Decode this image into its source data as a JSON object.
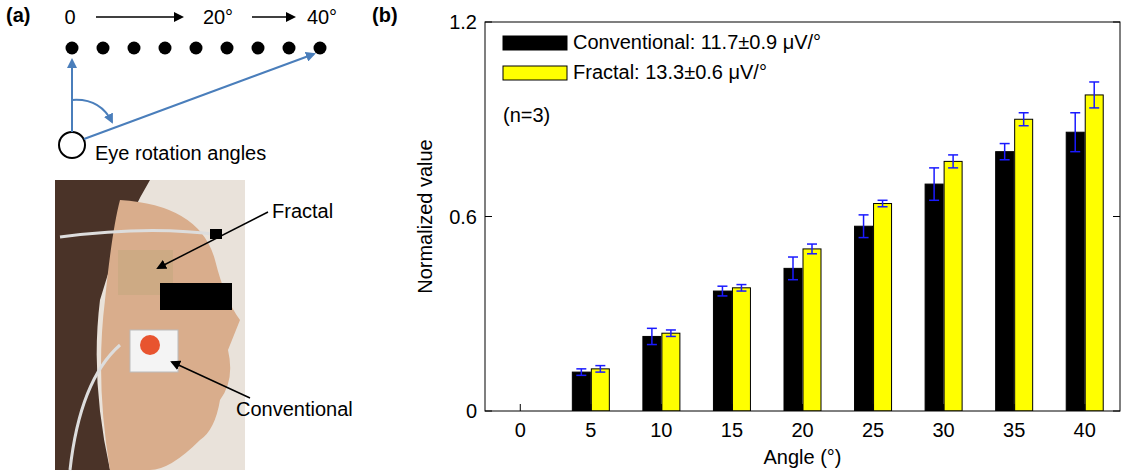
{
  "chart_data": {
    "type": "bar",
    "x_label": "Angle (°)",
    "y_label": "Normalized value",
    "categories": [
      "0",
      "5",
      "10",
      "15",
      "20",
      "25",
      "30",
      "35",
      "40"
    ],
    "series": [
      {
        "name": "Conventional: 11.7±0.9 μV/°",
        "color": "#000000",
        "values": [
          0,
          0.12,
          0.23,
          0.37,
          0.44,
          0.57,
          0.7,
          0.8,
          0.86
        ],
        "errors": [
          0,
          0.01,
          0.025,
          0.015,
          0.035,
          0.035,
          0.05,
          0.025,
          0.06
        ]
      },
      {
        "name": "Fractal: 13.3±0.6 μV/°",
        "color": "#ffff00",
        "values": [
          0,
          0.13,
          0.24,
          0.38,
          0.5,
          0.64,
          0.77,
          0.9,
          0.975
        ],
        "errors": [
          0,
          0.01,
          0.01,
          0.01,
          0.015,
          0.01,
          0.02,
          0.02,
          0.04
        ]
      }
    ],
    "ylim": [
      0,
      1.2
    ],
    "yticks": [
      0,
      0.6,
      1.2
    ],
    "grid": false,
    "legend": "upper left",
    "annotations": [
      "(n=3)"
    ]
  },
  "panel_a": {
    "label": "(a)",
    "angle_labels": [
      "0",
      "20°",
      "40°"
    ],
    "caption": "Eye rotation angles",
    "electrodes": [
      "Fractal",
      "Conventional"
    ]
  },
  "panel_b": {
    "label": "(b)"
  }
}
